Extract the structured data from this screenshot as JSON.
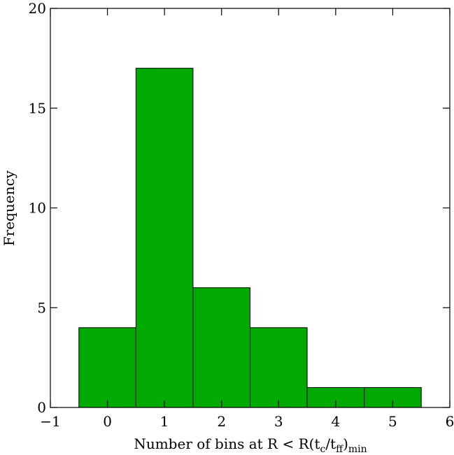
{
  "chart_data": {
    "type": "histogram",
    "xlabel": [
      "Number of bins at R < R(t",
      "c",
      "/t",
      "ff",
      ")",
      "min"
    ],
    "ylabel": "Frequency",
    "bins": [
      -0.5,
      0.5,
      1.5,
      2.5,
      3.5,
      4.5,
      5.5
    ],
    "values": [
      4,
      17,
      6,
      4,
      1,
      1
    ],
    "color": "#00aa00",
    "xlim": [
      -1,
      6
    ],
    "xticks": [
      {
        "value": -1,
        "label": "−1"
      },
      0,
      1,
      2,
      3,
      4,
      5,
      6
    ],
    "ylim": [
      0,
      20
    ],
    "yticks": [
      0,
      5,
      10,
      15,
      20
    ]
  }
}
